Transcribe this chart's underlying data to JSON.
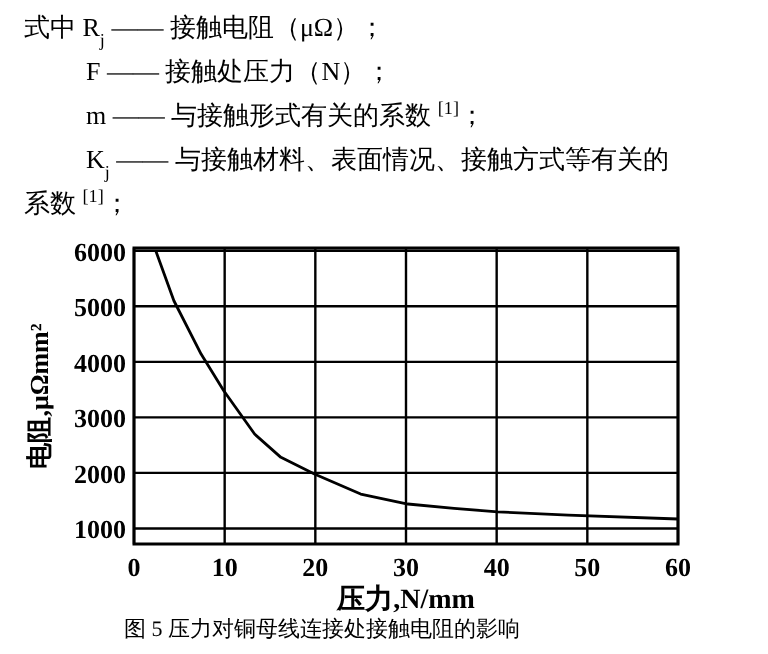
{
  "chart_data": {
    "type": "line",
    "annotations": [
      "式中 R$_{j}$ —— 接触电阻（μΩ）；",
      "F —— 接触处压力（N）；",
      "m —— 与接触形式有关的系数 $^{[1]}$；",
      "K$_{j}$ —— 与接触材料、表面情况、接触方式等有关的",
      "系数 $^{[1]}$；",
      "图 5  压力对铜母线连接处接触电阻的影响"
    ],
    "xlabel": "压力,N/mm",
    "ylabel": "电阻,μΩmm²",
    "x": [
      2.4,
      4.4,
      7.4,
      9.9,
      13.3,
      16.2,
      19.9,
      25,
      30.2,
      35.3,
      40.1,
      47.9,
      60
    ],
    "series": [
      {
        "color": "#000000",
        "values": [
          6000,
          5100,
          4140,
          3480,
          2700,
          2280,
          1980,
          1620,
          1440,
          1360,
          1300,
          1240,
          1170
        ]
      }
    ],
    "xlim": [
      0,
      60
    ],
    "xticks": [
      0,
      10,
      20,
      30,
      40,
      50,
      60
    ],
    "ylim": [
      720,
      6050
    ],
    "yticks": [
      1000,
      2000,
      3000,
      4000,
      5000,
      6000
    ],
    "grid": true,
    "marker": "none",
    "line_style": "solid"
  }
}
